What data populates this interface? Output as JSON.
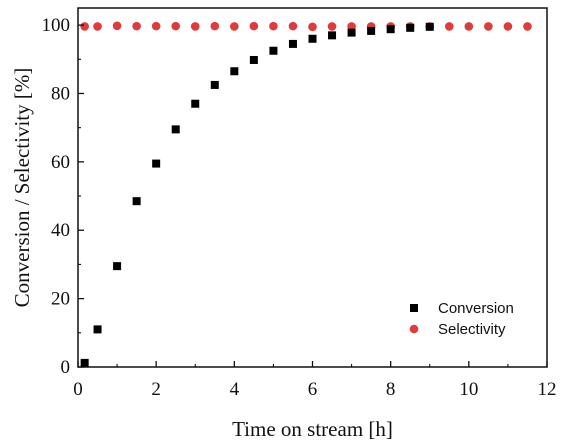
{
  "chart_data": {
    "type": "scatter",
    "xlabel": "Time on stream [h]",
    "ylabel": "Conversion / Selectivity [%]",
    "xlim": [
      0,
      12
    ],
    "ylim": [
      0,
      105
    ],
    "xticks": [
      0,
      2,
      4,
      6,
      8,
      10,
      12
    ],
    "yticks": [
      0,
      20,
      40,
      60,
      80,
      100
    ],
    "grid": false,
    "legend_position": "bottom-right",
    "series": [
      {
        "name": "Conversion",
        "color": "#000000",
        "marker": "square",
        "x": [
          0.17,
          0.5,
          1.0,
          1.5,
          2.0,
          2.5,
          3.0,
          3.5,
          4.0,
          4.5,
          5.0,
          5.5,
          6.0,
          6.5,
          7.0,
          7.5,
          8.0,
          8.5,
          9.0
        ],
        "y": [
          1.2,
          11,
          29.5,
          48.5,
          59.5,
          69.5,
          77,
          82.5,
          86.5,
          89.8,
          92.5,
          94.5,
          96,
          97,
          97.8,
          98.3,
          98.8,
          99.2,
          99.5
        ]
      },
      {
        "name": "Selectivity",
        "color": "#e03a3a",
        "marker": "circle",
        "x": [
          0.17,
          0.5,
          1.0,
          1.5,
          2.0,
          2.5,
          3.0,
          3.5,
          4.0,
          4.5,
          5.0,
          5.5,
          6.0,
          6.5,
          7.0,
          7.5,
          8.0,
          8.5,
          9.0,
          9.5,
          10.0,
          10.5,
          11.0,
          11.5
        ],
        "y": [
          99.6,
          99.6,
          99.8,
          99.7,
          99.7,
          99.7,
          99.6,
          99.7,
          99.6,
          99.7,
          99.7,
          99.7,
          99.5,
          99.6,
          99.6,
          99.6,
          99.6,
          99.6,
          99.6,
          99.6,
          99.6,
          99.6,
          99.6,
          99.6
        ]
      }
    ]
  }
}
